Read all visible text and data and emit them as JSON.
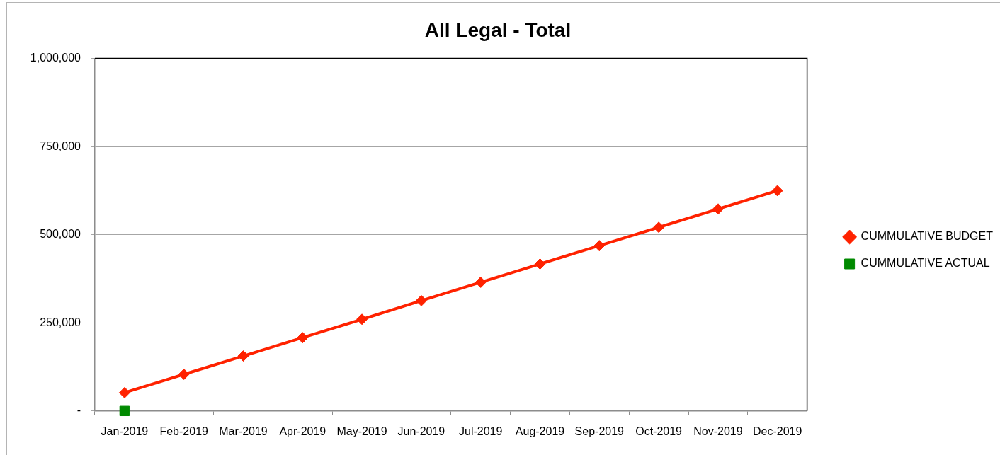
{
  "chart_data": {
    "type": "line",
    "title": "All Legal - Total",
    "categories": [
      "Jan-2019",
      "Feb-2019",
      "Mar-2019",
      "Apr-2019",
      "May-2019",
      "Jun-2019",
      "Jul-2019",
      "Aug-2019",
      "Sep-2019",
      "Oct-2019",
      "Nov-2019",
      "Dec-2019"
    ],
    "series": [
      {
        "name": "CUMMULATIVE BUDGET",
        "color": "#ff2200",
        "marker": "diamond",
        "values": [
          52000,
          104000,
          156000,
          208000,
          260000,
          313000,
          365000,
          417000,
          469000,
          521000,
          573000,
          625000
        ]
      },
      {
        "name": "CUMMULATIVE ACTUAL",
        "color": "#008a00",
        "marker": "square",
        "values": [
          0,
          null,
          null,
          null,
          null,
          null,
          null,
          null,
          null,
          null,
          null,
          null
        ]
      }
    ],
    "ylim": [
      0,
      1000000
    ],
    "yticks": [
      {
        "value": 0,
        "label": "-"
      },
      {
        "value": 250000,
        "label": "250,000"
      },
      {
        "value": 500000,
        "label": "500,000"
      },
      {
        "value": 750000,
        "label": "750,000"
      },
      {
        "value": 1000000,
        "label": "1,000,000"
      }
    ],
    "grid": "y",
    "legend": "right"
  }
}
